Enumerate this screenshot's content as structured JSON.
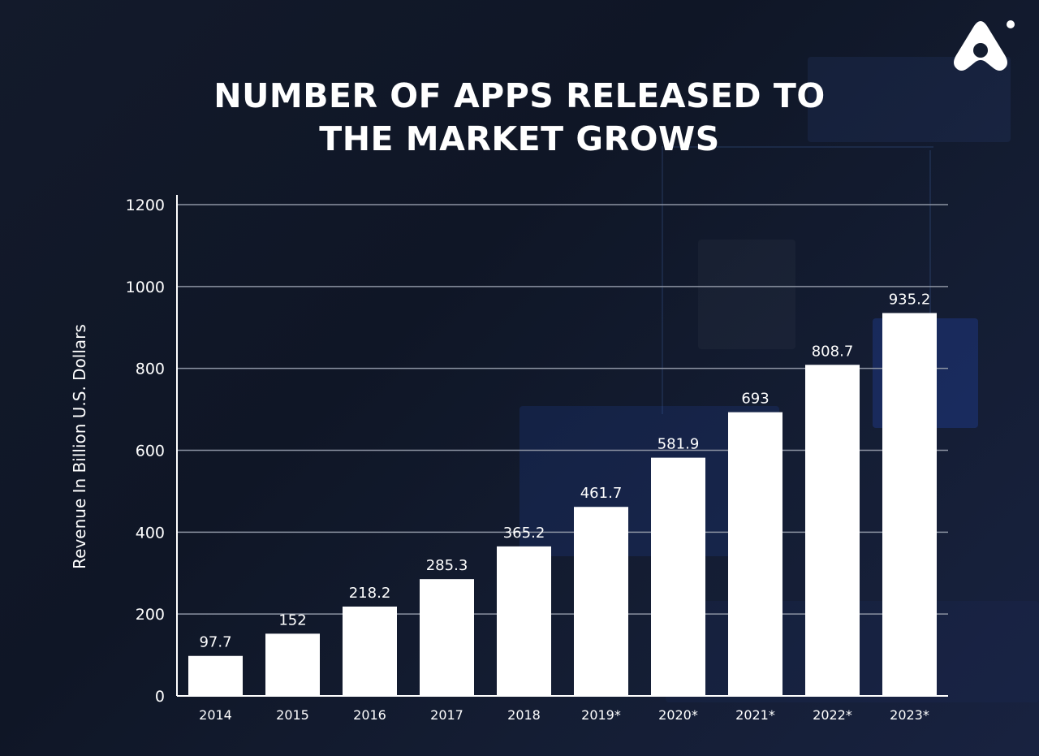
{
  "logo": {
    "icon": "app-brand-logo-icon"
  },
  "chart_data": {
    "type": "bar",
    "title_lines": [
      "NUMBER OF APPS RELEASED TO",
      "THE MARKET GROWS"
    ],
    "xlabel": "",
    "ylabel": "Revenue In Billion U.S. Dollars",
    "categories": [
      "2014",
      "2015",
      "2016",
      "2017",
      "2018",
      "2019*",
      "2020*",
      "2021*",
      "2022*",
      "2023*"
    ],
    "values": [
      97.7,
      152,
      218.2,
      285.3,
      365.2,
      461.7,
      581.9,
      693,
      808.7,
      935.2
    ],
    "value_labels": [
      "97.7",
      "152",
      "218.2",
      "285.3",
      "365.2",
      "461.7",
      "581.9",
      "693",
      "808.7",
      "935.2"
    ],
    "ylim": [
      0,
      1200
    ],
    "yticks": [
      0,
      200,
      400,
      600,
      800,
      1000,
      1200
    ],
    "grid": true,
    "colors": {
      "bar": "#ffffff",
      "grid": "#8d94a3",
      "axis": "#ffffff",
      "background": "#121a2c"
    }
  }
}
